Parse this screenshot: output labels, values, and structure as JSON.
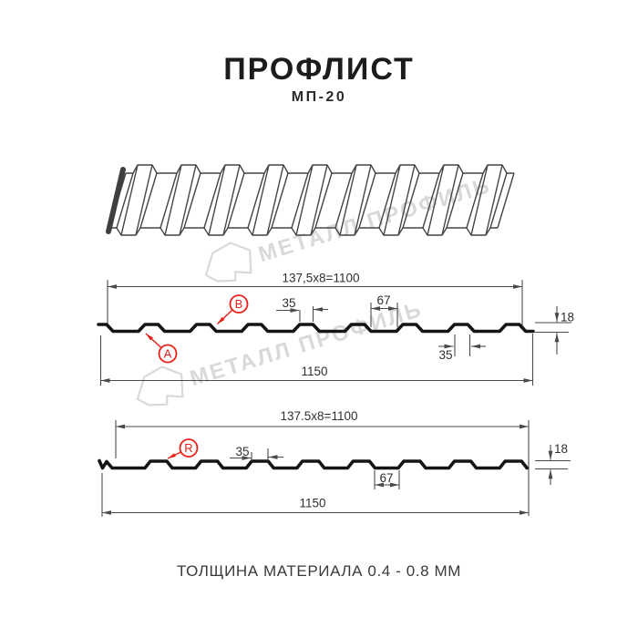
{
  "header": {
    "title": "ПРОФЛИСТ",
    "subtitle": "МП-20"
  },
  "watermark": {
    "text": "МЕТАЛЛ ПРОФИЛЬ"
  },
  "front_view": {
    "total_width_formula": "137,5x8=1100",
    "rib_top_width": "35",
    "groove_width": "67",
    "profile_height": "18",
    "edge_margin": "35",
    "full_width": "1150",
    "point_a": "A",
    "point_b": "B"
  },
  "reverse_view": {
    "total_width_formula": "137.5x8=1100",
    "rib_top_width": "35",
    "groove_width": "67",
    "profile_height": "18",
    "full_width": "1150",
    "point_r": "R"
  },
  "footer": {
    "note": "ТОЛЩИНА МАТЕРИАЛА 0.4 - 0.8 ММ"
  },
  "colors": {
    "accent_red": "#e8211a",
    "line_gray": "#4a4a4a",
    "profile_black": "#151515",
    "watermark_gray": "#d9d9d9",
    "background": "#ffffff"
  }
}
